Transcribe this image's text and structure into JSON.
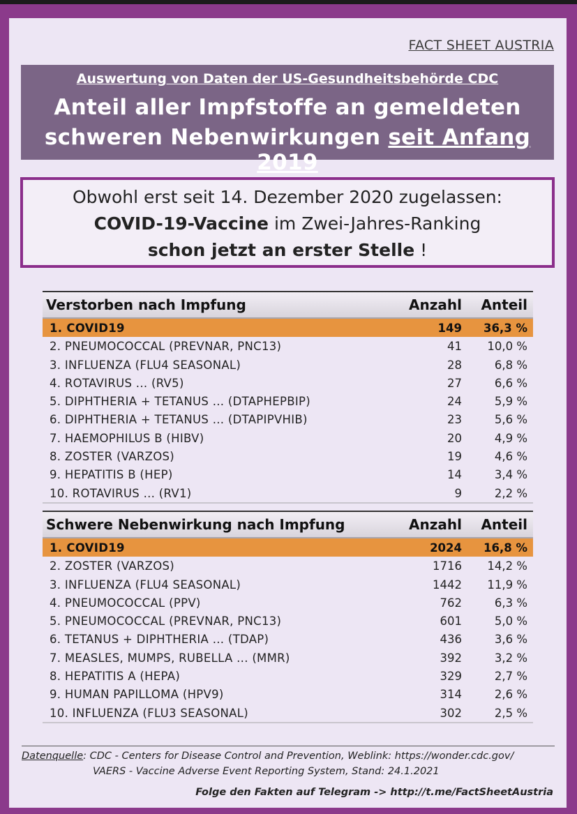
{
  "brand": "FACT SHEET AUSTRIA",
  "header": {
    "subtitle": "Auswertung von Daten der US-Gesundheitsbehörde CDC",
    "title_line1": "Anteil aller Impfstoffe an gemeldeten",
    "title_line2_prefix": "schweren Nebenwirkungen ",
    "title_line2_underlined": "seit Anfang 2019"
  },
  "callout": {
    "line1": "Obwohl erst seit 14. Dezember 2020 zugelassen:",
    "line2_bold": "COVID-19-Vaccine",
    "line2_rest": " im Zwei-Jahres-Ranking",
    "line3_bold": "schon jetzt an erster Stelle",
    "line3_rest": " !"
  },
  "table_deaths": {
    "header": "Verstorben nach Impfung",
    "col_count": "Anzahl",
    "col_share": "Anteil",
    "rows": [
      {
        "name": "1.  COVID19",
        "count": "149",
        "share": "36,3 %"
      },
      {
        "name": "2.  PNEUMOCOCCAL (PREVNAR, PNC13)",
        "count": "41",
        "share": "10,0 %"
      },
      {
        "name": "3.  INFLUENZA (FLU4 SEASONAL)",
        "count": "28",
        "share": "6,8 %"
      },
      {
        "name": "4.  ROTAVIRUS ... (RV5)",
        "count": "27",
        "share": "6,6 %"
      },
      {
        "name": "5.  DIPHTHERIA + TETANUS ... (DTAPHEPBIP)",
        "count": "24",
        "share": "5,9 %"
      },
      {
        "name": "6.  DIPHTHERIA + TETANUS ... (DTAPIPVHIB)",
        "count": "23",
        "share": "5,6 %"
      },
      {
        "name": "7.  HAEMOPHILUS B  (HIBV)",
        "count": "20",
        "share": "4,9 %"
      },
      {
        "name": "8.  ZOSTER (VARZOS)",
        "count": "19",
        "share": "4,6 %"
      },
      {
        "name": "9.  HEPATITIS B (HEP)",
        "count": "14",
        "share": "3,4 %"
      },
      {
        "name": "10.  ROTAVIRUS ... (RV1)",
        "count": "9",
        "share": "2,2 %"
      }
    ]
  },
  "table_severe": {
    "header": "Schwere Nebenwirkung nach Impfung",
    "col_count": "Anzahl",
    "col_share": "Anteil",
    "rows": [
      {
        "name": "1.  COVID19",
        "count": "2024",
        "share": "16,8 %"
      },
      {
        "name": "2.  ZOSTER (VARZOS)",
        "count": "1716",
        "share": "14,2 %"
      },
      {
        "name": "3.  INFLUENZA (FLU4 SEASONAL)",
        "count": "1442",
        "share": "11,9 %"
      },
      {
        "name": "4.  PNEUMOCOCCAL (PPV)",
        "count": "762",
        "share": "6,3 %"
      },
      {
        "name": "5.  PNEUMOCOCCAL (PREVNAR, PNC13)",
        "count": "601",
        "share": "5,0 %"
      },
      {
        "name": "6.  TETANUS + DIPHTHERIA ... (TDAP)",
        "count": "436",
        "share": "3,6 %"
      },
      {
        "name": "7.  MEASLES, MUMPS, RUBELLA ... (MMR)",
        "count": "392",
        "share": "3,2 %"
      },
      {
        "name": "8.  HEPATITIS A (HEPA)",
        "count": "329",
        "share": "2,7 %"
      },
      {
        "name": "9.  HUMAN PAPILLOMA (HPV9)",
        "count": "314",
        "share": "2,6 %"
      },
      {
        "name": "10.  INFLUENZA (FLU3 SEASONAL)",
        "count": "302",
        "share": "2,5 %"
      }
    ]
  },
  "footer": {
    "source_label": "Datenquelle",
    "source_text": ": CDC - Centers for Disease Control and Prevention,   Weblink:  https://wonder.cdc.gov/",
    "source_text2": "VAERS - Vaccine Adverse Event Reporting System,   Stand:     24.1.2021",
    "telegram": "Folge den Fakten auf Telegram  ->  http://t.me/FactSheetAustria"
  }
}
